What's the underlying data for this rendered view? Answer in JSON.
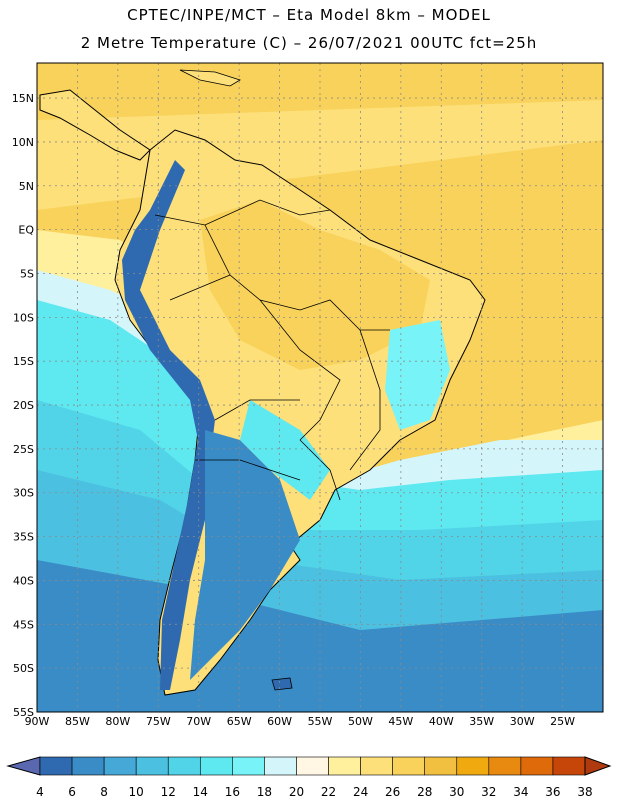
{
  "header": {
    "line1": "CPTEC/INPE/MCT –  Eta Model 8km – MODEL",
    "line2": "2 Metre Temperature (C) – 26/07/2021 00UTC fct=25h"
  },
  "map": {
    "lon_min": -90,
    "lon_max": -20,
    "lat_min": -55,
    "lat_max": 19,
    "lat_labels": [
      "15N",
      "10N",
      "5N",
      "EQ",
      "5S",
      "10S",
      "15S",
      "20S",
      "25S",
      "30S",
      "35S",
      "40S",
      "45S",
      "50S",
      "55S"
    ],
    "lon_labels": [
      "90W",
      "85W",
      "80W",
      "75W",
      "70W",
      "65W",
      "60W",
      "55W",
      "50W",
      "45W",
      "40W",
      "35W",
      "30W",
      "25W"
    ],
    "grid": "dotted every 5 degrees"
  },
  "legend": {
    "labels": [
      "4",
      "6",
      "8",
      "10",
      "12",
      "14",
      "16",
      "18",
      "20",
      "22",
      "24",
      "26",
      "28",
      "30",
      "32",
      "34",
      "36",
      "38"
    ],
    "colors": [
      "#5a68b0",
      "#2f6ab0",
      "#3a8cc6",
      "#46a8d6",
      "#4cc0e0",
      "#52d4e8",
      "#5ee8f0",
      "#78f4f8",
      "#d4f6fa",
      "#fff6e4",
      "#fff09e",
      "#fde07a",
      "#f8d25a",
      "#f2c040",
      "#f0aa10",
      "#e88a10",
      "#de6a0a",
      "#c6460a",
      "#b03a10"
    ]
  }
}
